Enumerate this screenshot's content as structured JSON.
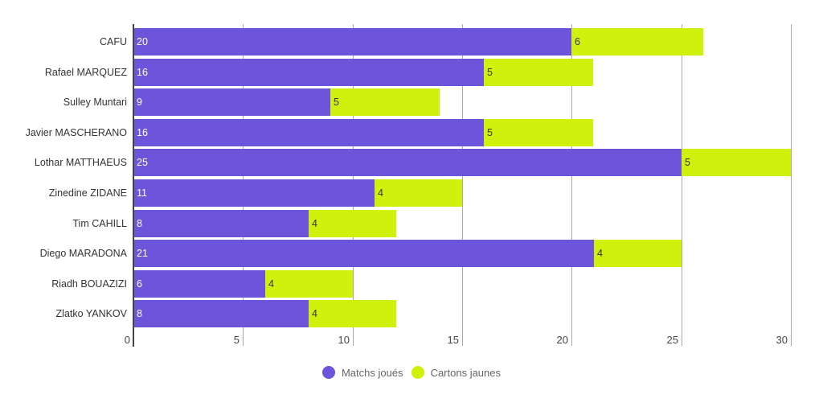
{
  "chart_data": {
    "type": "bar",
    "orientation": "horizontal",
    "stacked": true,
    "title": "",
    "xlabel": "",
    "ylabel": "",
    "categories": [
      "CAFU",
      "Rafael MARQUEZ",
      "Sulley Muntari",
      "Javier MASCHERANO",
      "Lothar MATTHAEUS",
      "Zinedine ZIDANE",
      "Tim CAHILL",
      "Diego MARADONA",
      "Riadh BOUAZIZI",
      "Zlatko YANKOV"
    ],
    "series": [
      {
        "name": "Matchs joués",
        "color": "#6c55db",
        "values": [
          20,
          16,
          9,
          16,
          25,
          11,
          8,
          21,
          6,
          8
        ]
      },
      {
        "name": "Cartons jaunes",
        "color": "#cff10b",
        "values": [
          6,
          5,
          5,
          5,
          5,
          4,
          4,
          4,
          4,
          4
        ]
      }
    ],
    "xlim": [
      0,
      30
    ],
    "xticks": [
      "0",
      "5",
      "10",
      "15",
      "20",
      "25",
      "30"
    ],
    "grid": true,
    "legend_position": "bottom"
  }
}
